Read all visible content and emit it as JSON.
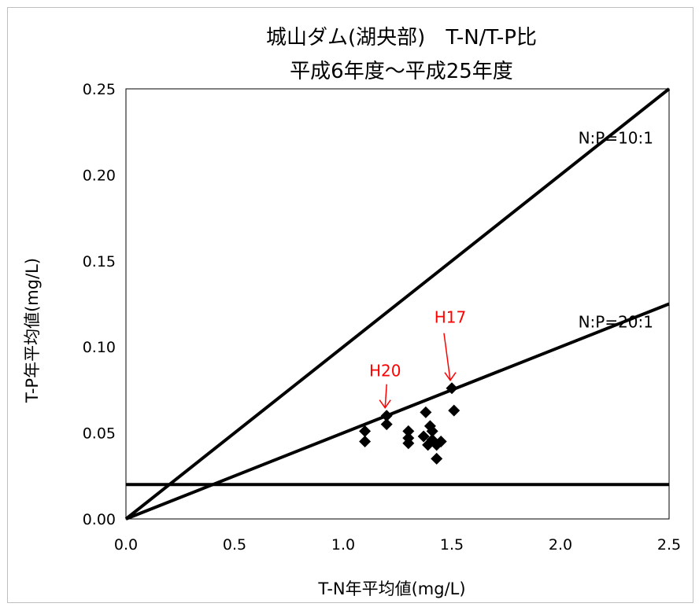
{
  "chart_data": {
    "type": "scatter",
    "title": "城山ダム(湖央部)　T-N/T-P比",
    "subtitle": "平成6年度～平成25年度",
    "xlabel": "T-N年平均値(mg/L)",
    "ylabel": "T-P年平均値(mg/L)",
    "xlim": [
      0,
      2.5
    ],
    "ylim": [
      0,
      0.25
    ],
    "x_ticks": [
      "0.0",
      "0.5",
      "1.0",
      "1.5",
      "2.0",
      "2.5"
    ],
    "y_ticks": [
      "0.00",
      "0.05",
      "0.10",
      "0.15",
      "0.20",
      "0.25"
    ],
    "grid": false,
    "legend": "none",
    "points": [
      {
        "x": 1.1,
        "y": 0.051
      },
      {
        "x": 1.1,
        "y": 0.045
      },
      {
        "x": 1.2,
        "y": 0.06
      },
      {
        "x": 1.2,
        "y": 0.055
      },
      {
        "x": 1.3,
        "y": 0.051
      },
      {
        "x": 1.3,
        "y": 0.047
      },
      {
        "x": 1.3,
        "y": 0.044
      },
      {
        "x": 1.37,
        "y": 0.048
      },
      {
        "x": 1.38,
        "y": 0.062
      },
      {
        "x": 1.39,
        "y": 0.043
      },
      {
        "x": 1.4,
        "y": 0.054
      },
      {
        "x": 1.41,
        "y": 0.051
      },
      {
        "x": 1.41,
        "y": 0.046
      },
      {
        "x": 1.43,
        "y": 0.043
      },
      {
        "x": 1.43,
        "y": 0.035
      },
      {
        "x": 1.45,
        "y": 0.045
      },
      {
        "x": 1.5,
        "y": 0.076
      },
      {
        "x": 1.51,
        "y": 0.063
      }
    ],
    "reference_lines": [
      {
        "label": "N:P=10:1",
        "x": [
          0,
          2.5
        ],
        "y": [
          0,
          0.25
        ]
      },
      {
        "label": "N:P=20:1",
        "x": [
          0,
          2.5
        ],
        "y": [
          0,
          0.125
        ]
      },
      {
        "label": "",
        "x": [
          0,
          2.5
        ],
        "y": [
          0.02,
          0.02
        ]
      }
    ],
    "annotations": [
      {
        "text": "H20",
        "x": 1.2,
        "y": 0.06,
        "color": "#ff0000"
      },
      {
        "text": "H17",
        "x": 1.5,
        "y": 0.076,
        "color": "#ff0000"
      }
    ]
  }
}
